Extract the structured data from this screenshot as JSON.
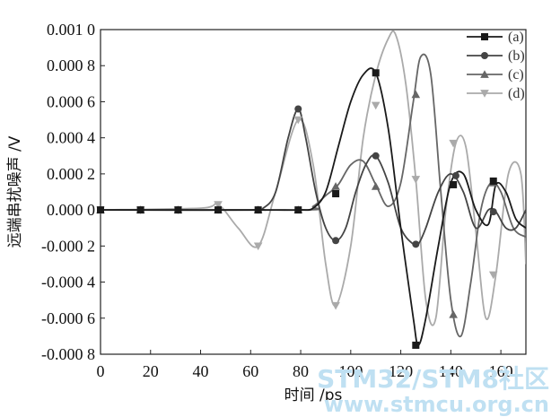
{
  "chart_data": {
    "type": "line",
    "xlabel": "时间 /ps",
    "ylabel": "远端串扰噪声 /V",
    "xlim": [
      0,
      170
    ],
    "ylim": [
      -0.0008,
      0.001
    ],
    "x_ticks": [
      0,
      20,
      40,
      60,
      80,
      100,
      120,
      140,
      160
    ],
    "x_tick_labels": [
      "0",
      "20",
      "40",
      "60",
      "80",
      "100",
      "120",
      "140",
      "160"
    ],
    "y_ticks": [
      0.001,
      0.0008,
      0.0006,
      0.0004,
      0.0002,
      0,
      -0.0002,
      -0.0004,
      -0.0006,
      -0.0008
    ],
    "y_tick_labels": [
      "0.001 0",
      "0.000 8",
      "0.000 6",
      "0.000 4",
      "0.000 2",
      "0.000 0",
      "-0.000 2",
      "-0.000 4",
      "-0.000 6",
      "-0.000 8"
    ],
    "legend_position": "top-right",
    "series": [
      {
        "name": "(a)",
        "marker": "square",
        "color": "#1a1a1a",
        "x": [
          0,
          45,
          50,
          60,
          70,
          80,
          85,
          90,
          95,
          100,
          105,
          110,
          115,
          120,
          125,
          127,
          130,
          135,
          140,
          145,
          150,
          155,
          158,
          162,
          166,
          170
        ],
        "y": [
          0,
          0,
          0,
          0,
          0,
          0,
          1e-05,
          0.0001,
          0.00035,
          0.0006,
          0.00075,
          0.00076,
          0.00045,
          -0.0001,
          -0.0006,
          -0.00075,
          -0.0006,
          -0.0002,
          0.00015,
          0.0002,
          0,
          -8e-05,
          0.00014,
          0.0001,
          -5e-05,
          -0.0001
        ],
        "marker_x": [
          0,
          16,
          31,
          47,
          63,
          79,
          94,
          110,
          126,
          141,
          157
        ],
        "marker_y": [
          0,
          0,
          0,
          0,
          0,
          0,
          9e-05,
          0.00076,
          -0.00075,
          0.00014,
          0.00016
        ]
      },
      {
        "name": "(b)",
        "marker": "circle",
        "color": "#444444",
        "x": [
          0,
          60,
          65,
          70,
          75,
          79,
          82,
          86,
          90,
          94,
          98,
          102,
          106,
          110,
          115,
          120,
          125,
          127,
          130,
          135,
          140,
          145,
          150,
          155,
          158,
          162,
          166,
          170
        ],
        "y": [
          0,
          0,
          1e-05,
          0.0001,
          0.0004,
          0.00056,
          0.0004,
          0.0001,
          -0.0001,
          -0.00017,
          -0.0001,
          0.0001,
          0.00025,
          0.0003,
          0.00015,
          -0.0001,
          -0.00019,
          -0.00019,
          -0.0001,
          0.0001,
          0.0002,
          0.0001,
          -0.0001,
          0,
          -1e-05,
          -0.0001,
          -0.0001,
          0
        ],
        "marker_x": [
          0,
          16,
          31,
          47,
          63,
          79,
          94,
          110,
          126,
          142,
          157
        ],
        "marker_y": [
          0,
          0,
          0,
          0,
          0,
          0.00056,
          -0.00017,
          0.0003,
          -0.00019,
          0.00019,
          -1e-05
        ]
      },
      {
        "name": "(c)",
        "marker": "triangle-up",
        "color": "#666666",
        "x": [
          0,
          80,
          85,
          90,
          95,
          100,
          105,
          110,
          115,
          120,
          125,
          128,
          132,
          136,
          140,
          144,
          148,
          152,
          156,
          160,
          165,
          170
        ],
        "y": [
          0,
          0,
          2e-05,
          8e-05,
          0.00014,
          0.00025,
          0.00027,
          0.00014,
          2e-05,
          0.00015,
          0.0006,
          0.00085,
          0.00075,
          0.0001,
          -0.0005,
          -0.0007,
          -0.0004,
          0,
          0.00015,
          0.0001,
          -0.0001,
          -0.00015
        ],
        "marker_x": [
          0,
          16,
          31,
          47,
          63,
          79,
          94,
          110,
          126,
          141,
          157
        ],
        "marker_y": [
          0,
          0,
          0,
          0,
          0,
          0,
          0.00013,
          0.00013,
          0.00064,
          -0.00058,
          0.00015
        ]
      },
      {
        "name": "(d)",
        "marker": "triangle-down",
        "color": "#aaaaaa",
        "x": [
          0,
          40,
          47,
          55,
          63,
          70,
          79,
          85,
          90,
          94,
          100,
          105,
          110,
          115,
          118,
          122,
          126,
          130,
          134,
          138,
          142,
          146,
          150,
          154,
          158,
          163,
          168,
          170
        ],
        "y": [
          0,
          1e-05,
          3e-05,
          -0.0001,
          -0.0002,
          0.0001,
          0.0005,
          0.00025,
          -0.0003,
          -0.00053,
          -0.0002,
          0.0004,
          0.00075,
          0.00095,
          0.00097,
          0.0007,
          0.00017,
          -0.0005,
          -0.0006,
          0,
          0.00037,
          0.00035,
          -0.00012,
          -0.0006,
          -0.00036,
          0.0002,
          0.0002,
          -0.0003
        ],
        "marker_x": [
          0,
          16,
          31,
          47,
          63,
          79,
          94,
          110,
          126,
          141,
          157
        ],
        "marker_y": [
          0,
          0,
          0,
          3e-05,
          -0.0002,
          0.0005,
          -0.00053,
          0.00058,
          0.00017,
          0.00037,
          -0.00036
        ]
      }
    ]
  },
  "watermark": {
    "line1": "STM32/STM8社区",
    "line2": "www.stmcu.org.cn"
  }
}
